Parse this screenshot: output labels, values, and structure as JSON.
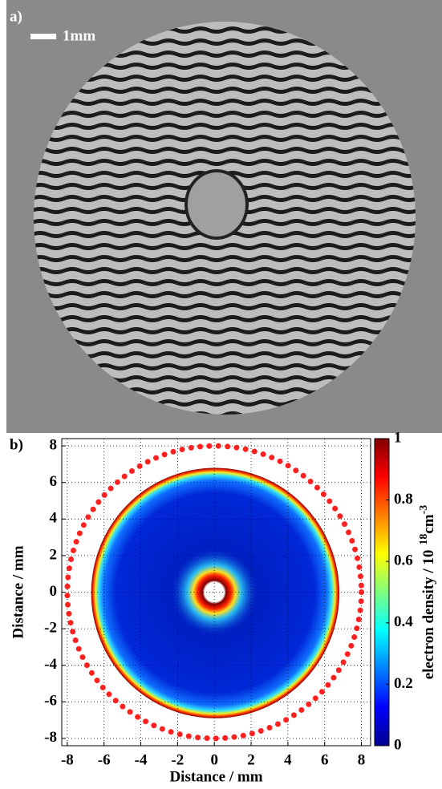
{
  "panel_a": {
    "label": "a)",
    "scale_bar": "1mm"
  },
  "panel_b_label": "b)",
  "chart_data": {
    "type": "heatmap",
    "xlabel": "Distance / mm",
    "ylabel": "Distance / mm",
    "xlim": [
      -8.3,
      8.5
    ],
    "ylim": [
      -8.4,
      8.4
    ],
    "xticks": [
      -8,
      -6,
      -4,
      -2,
      0,
      2,
      4,
      6,
      8
    ],
    "yticks": [
      -8,
      -6,
      -4,
      -2,
      0,
      2,
      4,
      6,
      8
    ],
    "grid": true,
    "circle_radius": 8,
    "circle_color": "#ff2020",
    "clim": [
      0,
      1
    ],
    "cticks": [
      0,
      0.2,
      0.4,
      0.6,
      0.8,
      1
    ],
    "colorbar_label": "electron density / 10",
    "colorbar_label_exp": "18",
    "colorbar_label_unit": "cm",
    "colorbar_label_unit_exp": "-3"
  }
}
